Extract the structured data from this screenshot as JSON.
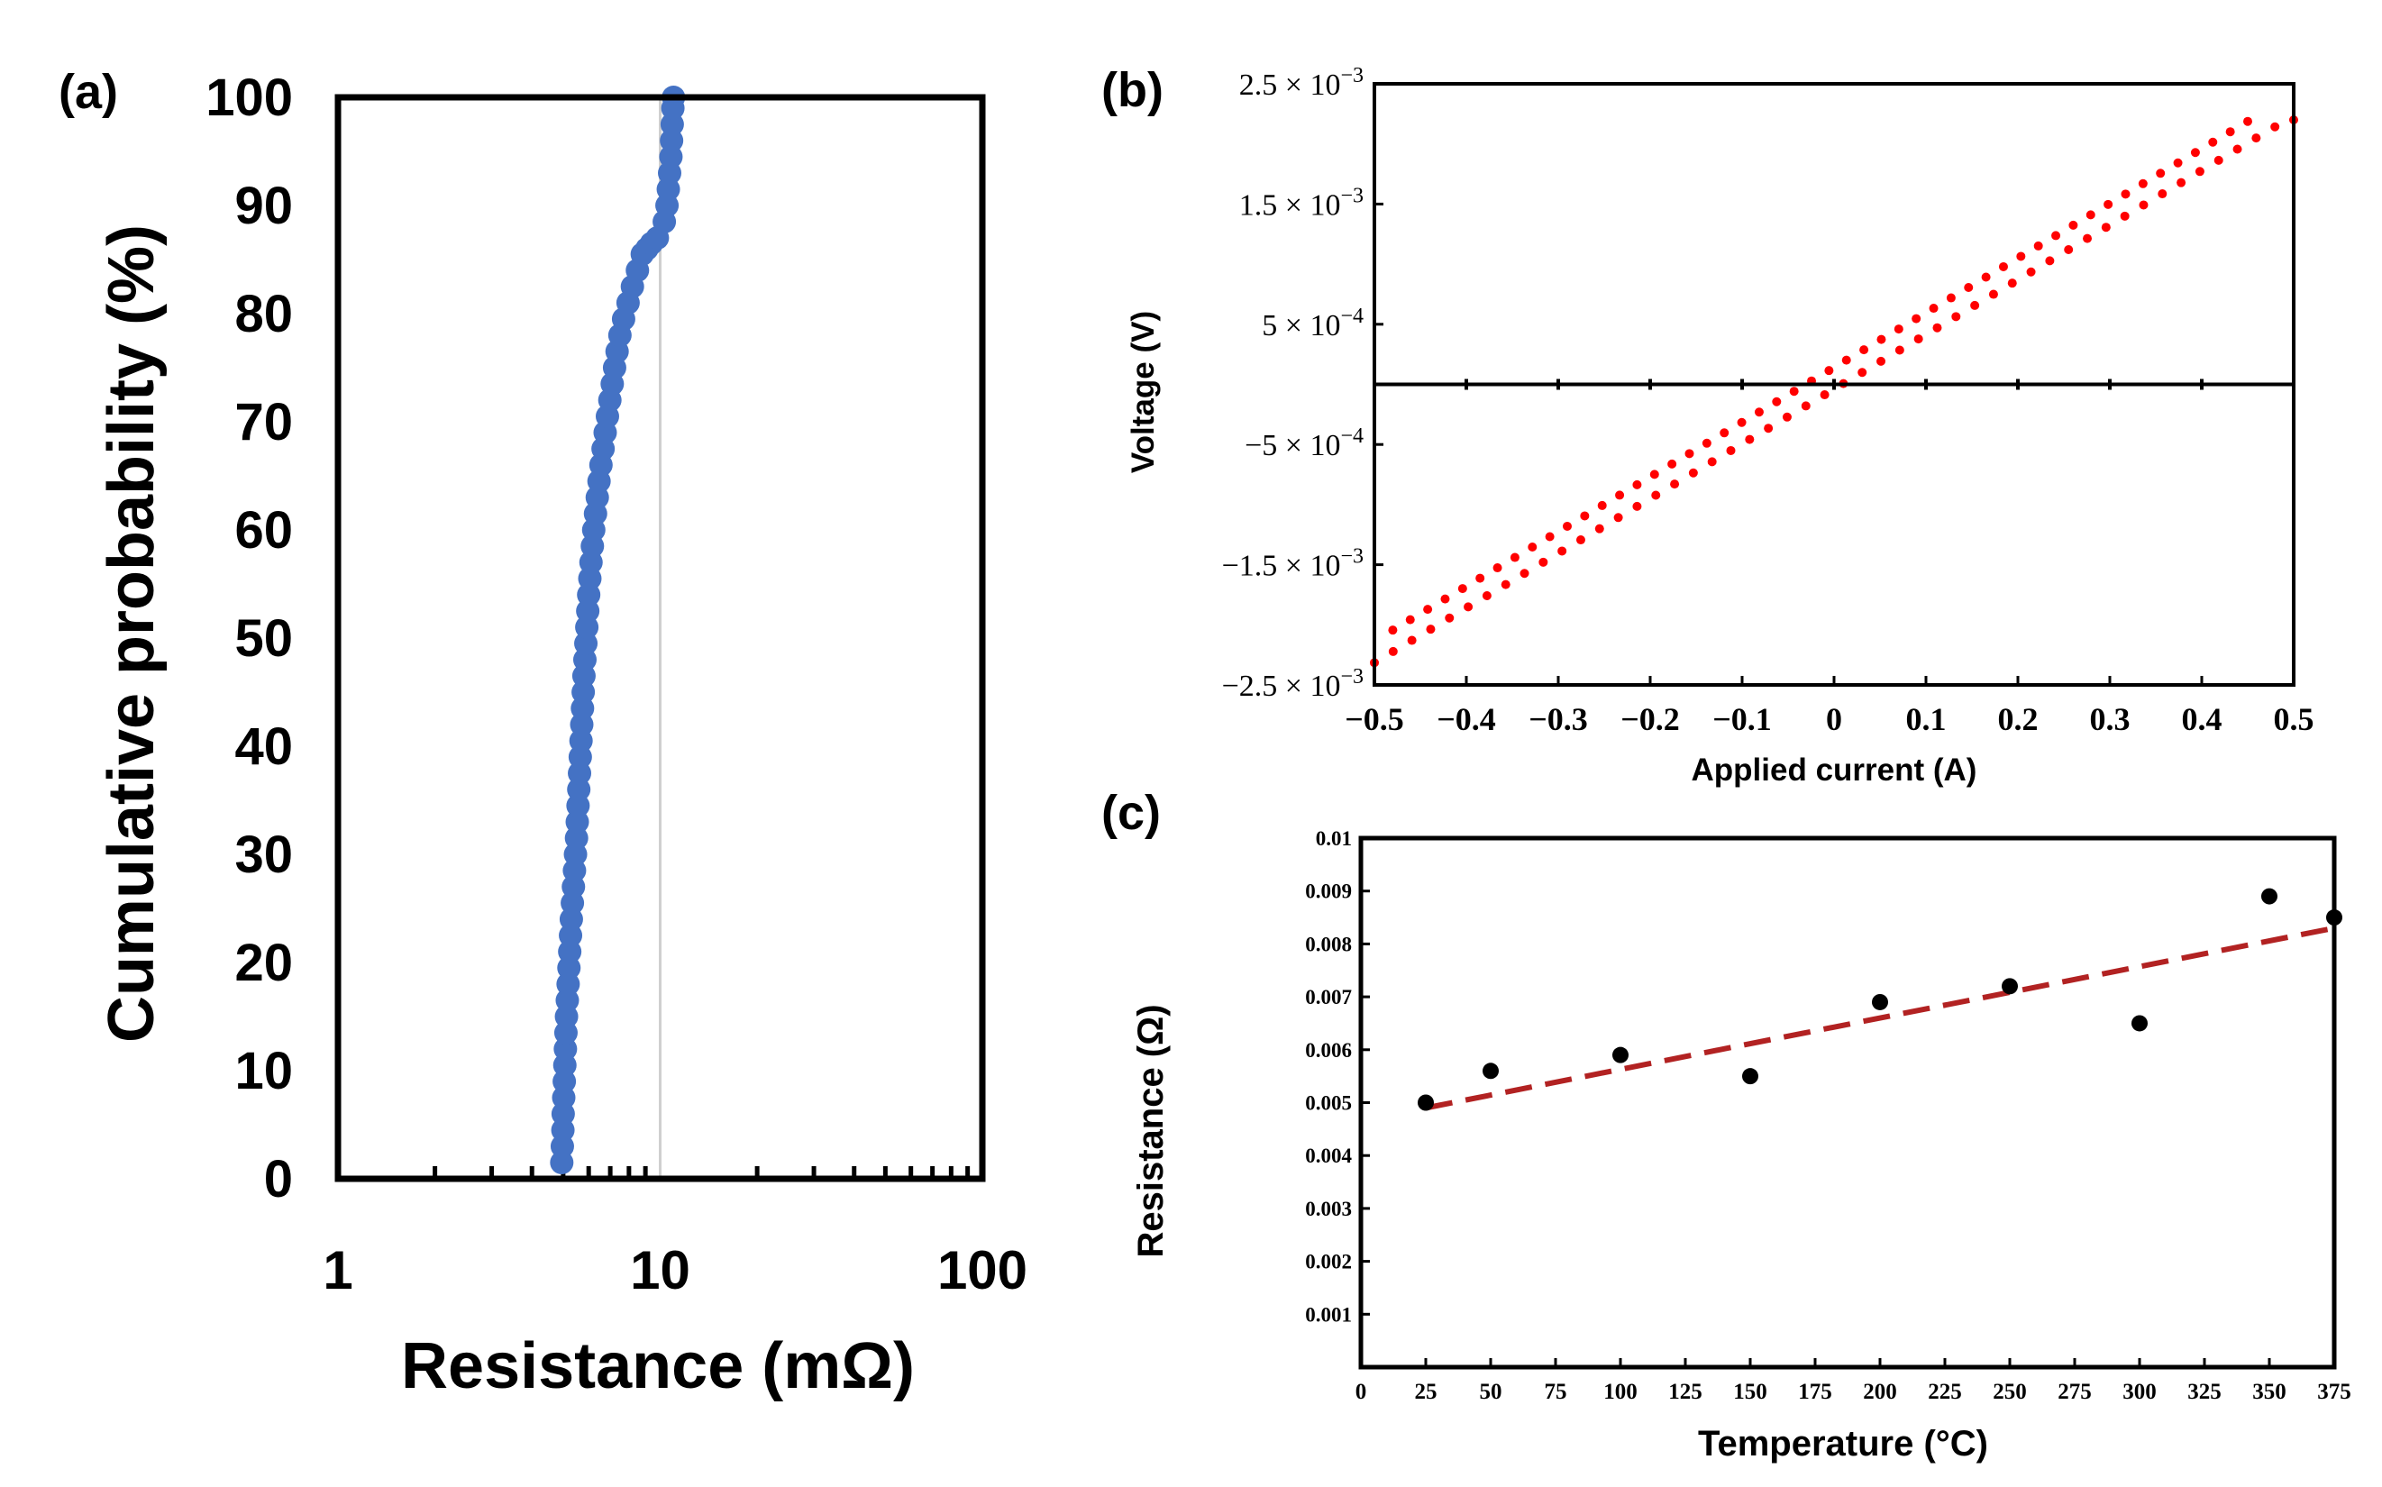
{
  "chart_data": [
    {
      "panel": "(a)",
      "type": "scatter",
      "xscale": "log",
      "xlabel": "Resistance (mΩ)",
      "ylabel": "Cumulative probability (%)",
      "xlim": [
        1,
        100
      ],
      "ylim": [
        0,
        100
      ],
      "xticks": [
        "1",
        "10",
        "100"
      ],
      "yticks": [
        "0",
        "10",
        "20",
        "30",
        "40",
        "50",
        "60",
        "70",
        "80",
        "90",
        "100"
      ],
      "reference_line_x": 10,
      "marker_color": "#4472C4",
      "x": [
        4.95,
        4.97,
        4.99,
        5.0,
        5.02,
        5.04,
        5.06,
        5.08,
        5.1,
        5.12,
        5.15,
        5.18,
        5.21,
        5.24,
        5.27,
        5.3,
        5.34,
        5.38,
        5.42,
        5.46,
        5.5,
        5.53,
        5.56,
        5.59,
        5.62,
        5.65,
        5.68,
        5.71,
        5.74,
        5.77,
        5.8,
        5.84,
        5.88,
        5.92,
        5.96,
        6.0,
        6.05,
        6.1,
        6.16,
        6.22,
        6.3,
        6.38,
        6.46,
        6.55,
        6.65,
        6.75,
        6.86,
        6.98,
        7.1,
        7.22,
        7.35,
        7.5,
        7.7,
        7.95,
        8.2,
        8.5,
        8.8,
        9.1,
        9.4,
        9.8,
        10.3,
        10.5,
        10.6,
        10.7,
        10.8,
        10.85,
        10.9,
        10.95,
        11.0
      ],
      "y": [
        1.5,
        3.0,
        4.5,
        6.0,
        7.5,
        9.0,
        10.5,
        12.0,
        13.5,
        15.0,
        16.5,
        18.0,
        19.5,
        21.0,
        22.5,
        24.0,
        25.5,
        27.0,
        28.5,
        30.0,
        31.5,
        33.0,
        34.5,
        36.0,
        37.5,
        39.0,
        40.5,
        42.0,
        43.5,
        45.0,
        46.5,
        48.0,
        49.5,
        51.0,
        52.5,
        54.0,
        55.5,
        57.0,
        58.5,
        60.0,
        61.5,
        63.0,
        64.5,
        66.0,
        67.5,
        69.0,
        70.5,
        72.0,
        73.5,
        75.0,
        76.5,
        78.0,
        79.5,
        81.0,
        82.5,
        84.0,
        85.5,
        86.0,
        86.5,
        87.0,
        88.5,
        90.0,
        91.5,
        93.0,
        94.5,
        96.0,
        97.5,
        99.0,
        100.0
      ]
    },
    {
      "panel": "(b)",
      "type": "scatter",
      "xlabel": "Applied current (A)",
      "ylabel": "Voltage (V)",
      "xlim": [
        -0.5,
        0.5
      ],
      "ylim": [
        -0.0025,
        0.0025
      ],
      "xticks": [
        "−0.5",
        "−0.4",
        "−0.3",
        "−0.2",
        "−0.1",
        "0",
        "0.1",
        "0.2",
        "0.3",
        "0.4",
        "0.5"
      ],
      "yticks": [
        {
          "mantissa": "2.5 × 10",
          "exp": "−3",
          "value": 0.0025
        },
        {
          "mantissa": "1.5 × 10",
          "exp": "−3",
          "value": 0.0015
        },
        {
          "mantissa": "5  × 10",
          "exp": "−4",
          "value": 0.0005
        },
        {
          "mantissa": "−5 × 10",
          "exp": "−4",
          "value": -0.0005
        },
        {
          "mantissa": "−1.5 × 10",
          "exp": "−3",
          "value": -0.0015
        },
        {
          "mantissa": "−2.5 × 10",
          "exp": "−3",
          "value": -0.0025
        }
      ],
      "marker_color": "#ff0000",
      "series_a": {
        "x_start": -0.5,
        "x_end": 0.5,
        "slope": 0.00455,
        "intercept": -4e-05
      },
      "series_b": {
        "x_start": -0.48,
        "x_end": 0.45,
        "slope": 0.00455,
        "intercept": 0.00014
      },
      "points_per_series": 50
    },
    {
      "panel": "(c)",
      "type": "scatter",
      "xlabel": "Temperature (°C)",
      "ylabel": "Resistance (Ω)",
      "xlim": [
        0,
        375
      ],
      "ylim": [
        0,
        0.01
      ],
      "xticks": [
        "0",
        "25",
        "50",
        "75",
        "100",
        "125",
        "150",
        "175",
        "200",
        "225",
        "250",
        "275",
        "300",
        "325",
        "350",
        "375"
      ],
      "yticks": [
        "0.001",
        "0.002",
        "0.003",
        "0.004",
        "0.005",
        "0.006",
        "0.007",
        "0.008",
        "0.009",
        "0.01"
      ],
      "x": [
        25,
        50,
        100,
        150,
        200,
        250,
        300,
        350,
        375
      ],
      "y": [
        0.005,
        0.0056,
        0.0059,
        0.0055,
        0.0069,
        0.0072,
        0.0065,
        0.0089,
        0.0085
      ],
      "marker_color": "#000000",
      "fit": {
        "x": [
          25,
          375
        ],
        "y": [
          0.0049,
          0.0083
        ],
        "color": "#b22222",
        "style": "dashed"
      }
    }
  ]
}
